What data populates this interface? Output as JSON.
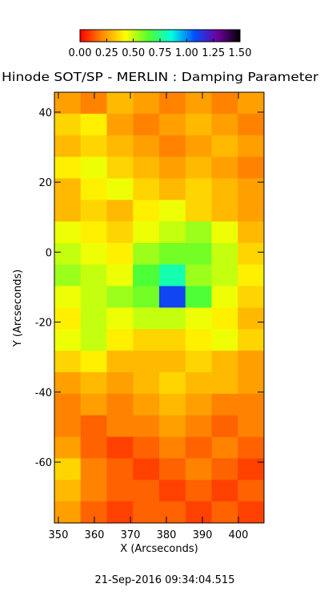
{
  "chart_data": {
    "type": "heatmap",
    "title": "Hinode SOT/SP - MERLIN : Damping Parameter",
    "x_label": "X (Arcseconds)",
    "y_label": "Y (Arcseconds)",
    "footer": "21-Sep-2016 09:34:04.515",
    "xlim": [
      348.9,
      407.1
    ],
    "ylim": [
      -77.4,
      45.7
    ],
    "xticks": [
      350,
      360,
      370,
      380,
      390,
      400
    ],
    "yticks": [
      -60,
      -40,
      -20,
      0,
      20,
      40
    ],
    "zlim": [
      0,
      1.5
    ],
    "zticks": [
      {
        "value": 0,
        "label": "0.00"
      },
      {
        "value": 0.25,
        "label": "0.25"
      },
      {
        "value": 0.5,
        "label": "0.50"
      },
      {
        "value": 0.75,
        "label": "0.75"
      },
      {
        "value": 1,
        "label": "1.00"
      },
      {
        "value": 1.25,
        "label": "1.25"
      },
      {
        "value": 1.5,
        "label": "1.50"
      }
    ],
    "colorscale": [
      "#ff0000",
      "#ff8c00",
      "#ffff00",
      "#50ff30",
      "#00ffe0",
      "#0050ff",
      "#7000a0",
      "#000000"
    ],
    "z": [
      [
        0.25,
        0.2,
        0.3,
        0.25,
        0.2,
        0.25,
        0.2,
        0.25
      ],
      [
        0.35,
        0.4,
        0.25,
        0.2,
        0.25,
        0.3,
        0.25,
        0.2
      ],
      [
        0.3,
        0.35,
        0.3,
        0.25,
        0.2,
        0.25,
        0.3,
        0.25
      ],
      [
        0.4,
        0.45,
        0.35,
        0.3,
        0.25,
        0.3,
        0.25,
        0.2
      ],
      [
        0.3,
        0.4,
        0.45,
        0.35,
        0.3,
        0.35,
        0.3,
        0.25
      ],
      [
        0.3,
        0.35,
        0.3,
        0.4,
        0.45,
        0.35,
        0.3,
        0.25
      ],
      [
        0.45,
        0.4,
        0.35,
        0.45,
        0.5,
        0.55,
        0.45,
        0.3
      ],
      [
        0.5,
        0.45,
        0.4,
        0.55,
        0.6,
        0.6,
        0.5,
        0.35
      ],
      [
        0.55,
        0.5,
        0.45,
        0.65,
        0.8,
        0.55,
        0.5,
        0.4
      ],
      [
        0.45,
        0.5,
        0.55,
        0.6,
        1.1,
        0.65,
        0.45,
        0.35
      ],
      [
        0.4,
        0.5,
        0.45,
        0.5,
        0.5,
        0.45,
        0.4,
        0.3
      ],
      [
        0.45,
        0.5,
        0.4,
        0.35,
        0.35,
        0.4,
        0.45,
        0.35
      ],
      [
        0.35,
        0.4,
        0.3,
        0.3,
        0.3,
        0.35,
        0.3,
        0.25
      ],
      [
        0.25,
        0.3,
        0.25,
        0.3,
        0.35,
        0.3,
        0.3,
        0.25
      ],
      [
        0.2,
        0.25,
        0.2,
        0.25,
        0.3,
        0.25,
        0.2,
        0.2
      ],
      [
        0.2,
        0.15,
        0.2,
        0.2,
        0.25,
        0.2,
        0.15,
        0.2
      ],
      [
        0.25,
        0.15,
        0.1,
        0.15,
        0.2,
        0.15,
        0.2,
        0.15
      ],
      [
        0.35,
        0.2,
        0.15,
        0.1,
        0.15,
        0.2,
        0.15,
        0.1
      ],
      [
        0.3,
        0.2,
        0.15,
        0.15,
        0.1,
        0.15,
        0.1,
        0.15
      ],
      [
        0.25,
        0.15,
        0.1,
        0.15,
        0.15,
        0.1,
        0.15,
        0.1
      ]
    ]
  }
}
